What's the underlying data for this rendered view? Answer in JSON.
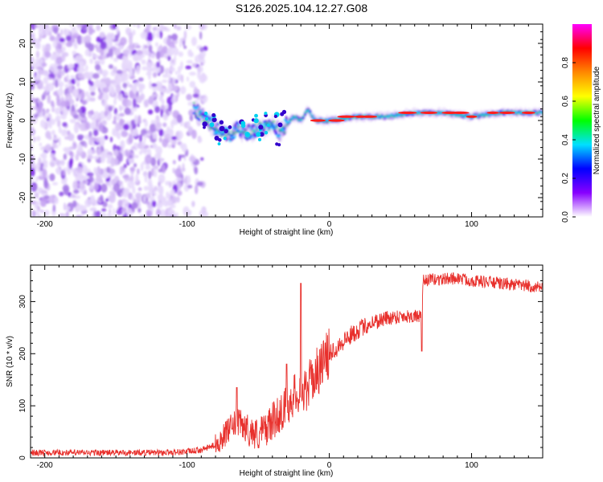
{
  "title": "S126.2025.104.12.27.G08",
  "chart_data": [
    {
      "type": "heatmap",
      "xlabel": "Height of straight line (km)",
      "ylabel": "Frequency (Hz)",
      "xlim": [
        -210,
        150
      ],
      "ylim": [
        -25,
        25
      ],
      "xticks": [
        -200,
        -100,
        0,
        100
      ],
      "yticks": [
        -20,
        -10,
        0,
        10,
        20
      ],
      "colorbar": {
        "label": "Normalized spectral amplitude",
        "range": [
          0,
          1
        ],
        "ticks": [
          "0.0",
          "0.2",
          "0.4",
          "0.6",
          "0.8"
        ],
        "stops": [
          "#ffffff",
          "#8800ff",
          "#0000ff",
          "#00e0ff",
          "#00ff00",
          "#ffff00",
          "#ff8800",
          "#ff0000",
          "#ff00ff"
        ]
      },
      "ridge": {
        "x": [
          -95,
          -90,
          -85,
          -80,
          -75,
          -70,
          -65,
          -60,
          -55,
          -50,
          -45,
          -40,
          -35,
          -30,
          -25,
          -20,
          -15,
          -10,
          0,
          20,
          40,
          60,
          80,
          100,
          120,
          150
        ],
        "y": [
          3,
          1,
          0,
          -2,
          -3,
          -4,
          -2,
          -3,
          -3,
          -2,
          -2,
          -1,
          -3,
          -1,
          1,
          0,
          3,
          0,
          0,
          1,
          1,
          2,
          2,
          1,
          2,
          2
        ]
      },
      "noise_region": [
        -210,
        -95
      ]
    },
    {
      "type": "line",
      "xlabel": "Height of straight line (km)",
      "ylabel": "SNR (10 * v/v)",
      "xlim": [
        -210,
        150
      ],
      "ylim": [
        0,
        370
      ],
      "xticks": [
        -200,
        -100,
        0,
        100
      ],
      "yticks": [
        0,
        100,
        200,
        300
      ],
      "color": "#e8302c",
      "series": [
        {
          "x": [
            -210,
            -180,
            -150,
            -120,
            -100,
            -90,
            -80,
            -75,
            -70,
            -65,
            -60,
            -55,
            -50,
            -45,
            -40,
            -35,
            -30,
            -25,
            -20,
            -18,
            -15,
            -10,
            -5,
            0,
            10,
            20,
            30,
            40,
            50,
            60,
            65,
            66,
            70,
            80,
            90,
            100,
            110,
            120,
            130,
            140,
            150
          ],
          "y": [
            10,
            10,
            10,
            10,
            12,
            15,
            25,
            40,
            55,
            70,
            60,
            50,
            45,
            55,
            70,
            85,
            100,
            120,
            130,
            120,
            140,
            160,
            180,
            200,
            225,
            245,
            260,
            268,
            272,
            272,
            270,
            340,
            342,
            343,
            345,
            340,
            338,
            335,
            332,
            330,
            325
          ]
        }
      ],
      "spikes": [
        {
          "x": -65,
          "y": 135
        },
        {
          "x": -30,
          "y": 180
        },
        {
          "x": -20,
          "y": 335
        },
        {
          "x": 65,
          "y": 205
        }
      ]
    }
  ]
}
